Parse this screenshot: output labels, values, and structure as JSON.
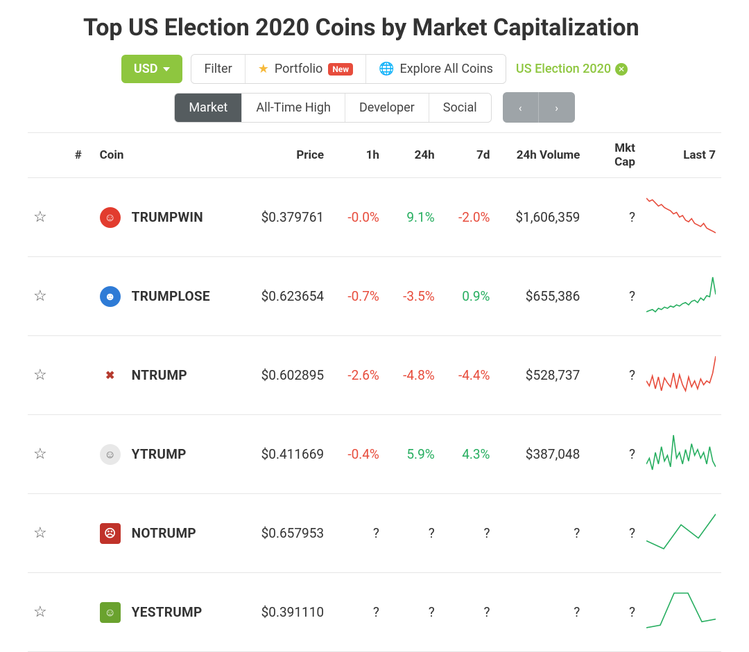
{
  "page": {
    "title": "Top US Election 2020 Coins by Market Capitalization"
  },
  "colors": {
    "accent_green": "#8ec63f",
    "text_green": "#27ae60",
    "text_red": "#e74c3c",
    "tab_active_bg": "#555c5f",
    "pager_bg": "#9ea4a8",
    "border": "#e6e6e6"
  },
  "toolbar": {
    "currency": "USD",
    "filter_label": "Filter",
    "portfolio_label": "Portfolio",
    "portfolio_badge": "New",
    "explore_label": "Explore All Coins",
    "active_filter_tag": "US Election 2020"
  },
  "tabs": {
    "items": [
      "Market",
      "All-Time High",
      "Developer",
      "Social"
    ],
    "active_index": 0
  },
  "table": {
    "columns": {
      "rank": "#",
      "coin": "Coin",
      "price": "Price",
      "h1": "1h",
      "h24": "24h",
      "d7": "7d",
      "vol24": "24h Volume",
      "mktcap": "Mkt Cap",
      "last7": "Last 7"
    },
    "rows": [
      {
        "name": "TRUMPWIN",
        "icon_bg": "#e23c2e",
        "icon_fg": "#ffffff",
        "icon_shape": "round",
        "icon_glyph": "☺",
        "price": "$0.379761",
        "h1": {
          "text": "-0.0%",
          "dir": "neg"
        },
        "h24": {
          "text": "9.1%",
          "dir": "pos"
        },
        "d7": {
          "text": "-2.0%",
          "dir": "neg"
        },
        "vol24": "$1,606,359",
        "mktcap": "?",
        "spark": {
          "color": "#e74c3c",
          "points": [
            50,
            48,
            49,
            47,
            45,
            46,
            44,
            43,
            42,
            40,
            41,
            38,
            39,
            36,
            35,
            37,
            34,
            33,
            32,
            34,
            31,
            30,
            29,
            28
          ]
        }
      },
      {
        "name": "TRUMPLOSE",
        "icon_bg": "#2e7bd6",
        "icon_fg": "#ffffff",
        "icon_shape": "round",
        "icon_glyph": "☻",
        "price": "$0.623654",
        "h1": {
          "text": "-0.7%",
          "dir": "neg"
        },
        "h24": {
          "text": "-3.5%",
          "dir": "neg"
        },
        "d7": {
          "text": "0.9%",
          "dir": "pos"
        },
        "vol24": "$655,386",
        "mktcap": "?",
        "spark": {
          "color": "#27ae60",
          "points": [
            20,
            21,
            22,
            20,
            23,
            22,
            24,
            23,
            25,
            24,
            26,
            25,
            27,
            28,
            26,
            29,
            30,
            28,
            32,
            30,
            34,
            33,
            50,
            35
          ]
        }
      },
      {
        "name": "NTRUMP",
        "icon_bg": "#ffffff",
        "icon_fg": "#b53a2e",
        "icon_shape": "round",
        "icon_glyph": "✖",
        "price": "$0.602895",
        "h1": {
          "text": "-2.6%",
          "dir": "neg"
        },
        "h24": {
          "text": "-4.8%",
          "dir": "neg"
        },
        "d7": {
          "text": "-4.4%",
          "dir": "neg"
        },
        "vol24": "$528,737",
        "mktcap": "?",
        "spark": {
          "color": "#e74c3c",
          "points": [
            30,
            25,
            35,
            22,
            34,
            20,
            33,
            28,
            24,
            38,
            22,
            36,
            26,
            20,
            34,
            24,
            30,
            22,
            32,
            26,
            30,
            28,
            38,
            55
          ]
        }
      },
      {
        "name": "YTRUMP",
        "icon_bg": "#e8e8e8",
        "icon_fg": "#666666",
        "icon_shape": "round",
        "icon_glyph": "☺",
        "price": "$0.411669",
        "h1": {
          "text": "-0.4%",
          "dir": "neg"
        },
        "h24": {
          "text": "5.9%",
          "dir": "pos"
        },
        "d7": {
          "text": "4.3%",
          "dir": "pos"
        },
        "vol24": "$387,048",
        "mktcap": "?",
        "spark": {
          "color": "#27ae60",
          "points": [
            30,
            32,
            28,
            34,
            30,
            36,
            31,
            33,
            29,
            40,
            32,
            34,
            30,
            35,
            31,
            37,
            33,
            35,
            32,
            34,
            30,
            36,
            31,
            29
          ]
        }
      },
      {
        "name": "NOTRUMP",
        "icon_bg": "#c0322a",
        "icon_fg": "#ffffff",
        "icon_shape": "square",
        "icon_glyph": "☹",
        "price": "$0.657953",
        "h1": {
          "text": "?",
          "dir": "unknown"
        },
        "h24": {
          "text": "?",
          "dir": "unknown"
        },
        "d7": {
          "text": "?",
          "dir": "unknown"
        },
        "vol24": "?",
        "mktcap": "?",
        "spark": {
          "color": "#27ae60",
          "points": [
            18,
            12,
            30,
            20,
            38
          ]
        }
      },
      {
        "name": "YESTRUMP",
        "icon_bg": "#6aa22e",
        "icon_fg": "#ffffff",
        "icon_shape": "square",
        "icon_glyph": "☺",
        "price": "$0.391110",
        "h1": {
          "text": "?",
          "dir": "unknown"
        },
        "h24": {
          "text": "?",
          "dir": "unknown"
        },
        "d7": {
          "text": "?",
          "dir": "unknown"
        },
        "vol24": "?",
        "mktcap": "?",
        "spark": {
          "color": "#27ae60",
          "points": [
            5,
            8,
            45,
            45,
            12,
            15
          ]
        }
      }
    ]
  }
}
